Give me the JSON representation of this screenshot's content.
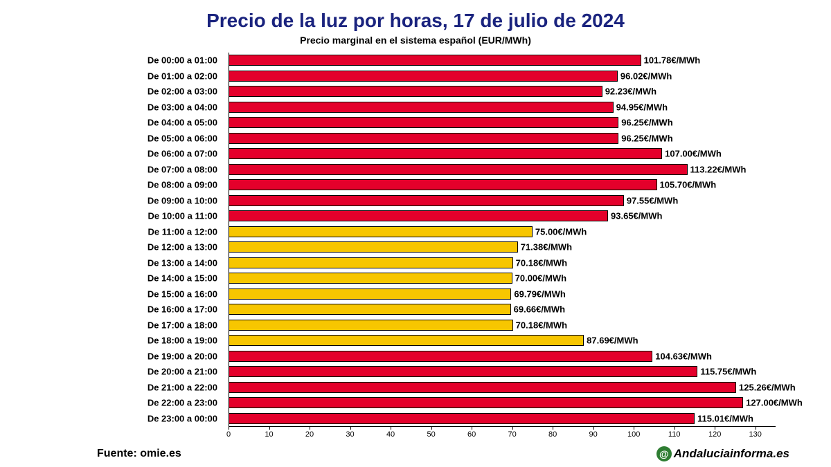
{
  "title": "Precio de la luz por horas, 17 de julio de 2024",
  "subtitle": "Precio marginal en el sistema español (EUR/MWh)",
  "source": "Fuente: omie.es",
  "watermark": "Andaluciainforma.es",
  "chart": {
    "type": "bar-horizontal",
    "xlim": [
      0,
      135
    ],
    "xticks": [
      0,
      10,
      20,
      30,
      40,
      50,
      60,
      70,
      80,
      90,
      100,
      110,
      120,
      130
    ],
    "bar_border": "#000000",
    "background": "#ffffff",
    "title_color": "#1a237e",
    "label_fontsize": 13,
    "tick_fontsize": 11,
    "value_suffix": "€/MWh",
    "colors": {
      "high": "#e4002b",
      "low": "#f7c600"
    },
    "bars": [
      {
        "label": "De 00:00 a 01:00",
        "value": 101.78,
        "color": "high"
      },
      {
        "label": "De 01:00 a 02:00",
        "value": 96.02,
        "color": "high"
      },
      {
        "label": "De 02:00 a 03:00",
        "value": 92.23,
        "color": "high"
      },
      {
        "label": "De 03:00 a 04:00",
        "value": 94.95,
        "color": "high"
      },
      {
        "label": "De 04:00 a 05:00",
        "value": 96.25,
        "color": "high"
      },
      {
        "label": "De 05:00 a 06:00",
        "value": 96.25,
        "color": "high"
      },
      {
        "label": "De 06:00 a 07:00",
        "value": 107.0,
        "color": "high"
      },
      {
        "label": "De 07:00 a 08:00",
        "value": 113.22,
        "color": "high"
      },
      {
        "label": "De 08:00 a 09:00",
        "value": 105.7,
        "color": "high"
      },
      {
        "label": "De 09:00 a 10:00",
        "value": 97.55,
        "color": "high"
      },
      {
        "label": "De 10:00 a 11:00",
        "value": 93.65,
        "color": "high"
      },
      {
        "label": "De 11:00 a 12:00",
        "value": 75.0,
        "color": "low"
      },
      {
        "label": "De 12:00 a 13:00",
        "value": 71.38,
        "color": "low"
      },
      {
        "label": "De 13:00 a 14:00",
        "value": 70.18,
        "color": "low"
      },
      {
        "label": "De 14:00 a 15:00",
        "value": 70.0,
        "color": "low"
      },
      {
        "label": "De 15:00 a 16:00",
        "value": 69.79,
        "color": "low"
      },
      {
        "label": "De 16:00 a 17:00",
        "value": 69.66,
        "color": "low"
      },
      {
        "label": "De 17:00 a 18:00",
        "value": 70.18,
        "color": "low"
      },
      {
        "label": "De 18:00 a 19:00",
        "value": 87.69,
        "color": "low"
      },
      {
        "label": "De 19:00 a 20:00",
        "value": 104.63,
        "color": "high"
      },
      {
        "label": "De 20:00 a 21:00",
        "value": 115.75,
        "color": "high"
      },
      {
        "label": "De 21:00 a 22:00",
        "value": 125.26,
        "color": "high"
      },
      {
        "label": "De 22:00 a 23:00",
        "value": 127.0,
        "color": "high"
      },
      {
        "label": "De 23:00 a 00:00",
        "value": 115.01,
        "color": "high"
      }
    ]
  }
}
